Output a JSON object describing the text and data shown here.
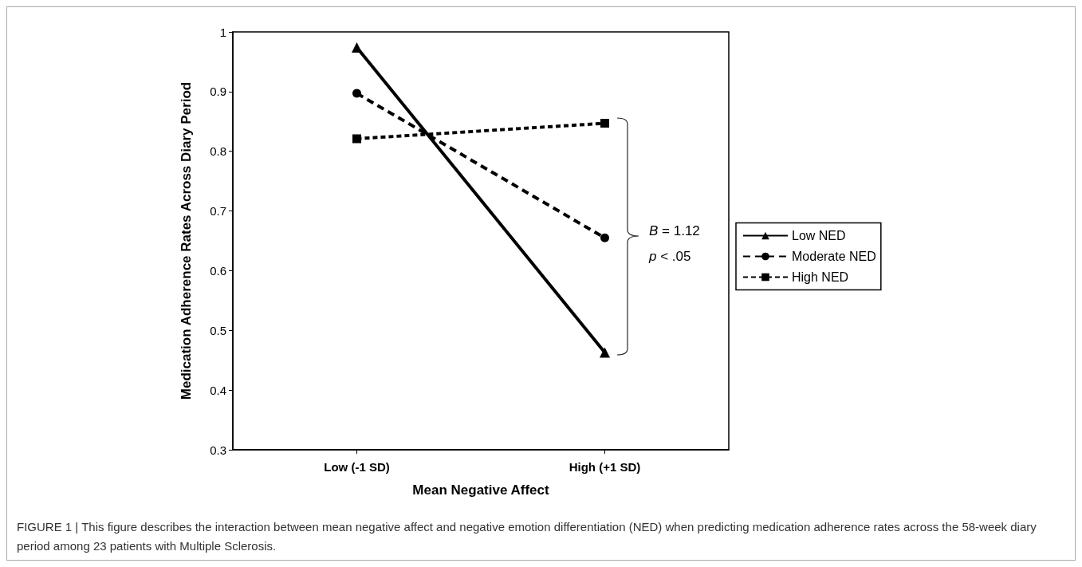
{
  "chart_data": {
    "type": "line",
    "xlabel": "Mean Negative Affect",
    "ylabel": "Medication Adherence Rates Across Diary Period",
    "categories": [
      "Low (-1 SD)",
      "High (+1 SD)"
    ],
    "series": [
      {
        "name": "Low NED",
        "color": "#000000",
        "values": [
          0.974,
          0.463
        ],
        "marker": "triangle",
        "line_style": "solid"
      },
      {
        "name": "Moderate NED",
        "color": "#000000",
        "values": [
          0.897,
          0.655
        ],
        "marker": "circle",
        "line_style": "dashed"
      },
      {
        "name": "High NED",
        "color": "#000000",
        "values": [
          0.821,
          0.847
        ],
        "marker": "square",
        "line_style": "dotted"
      }
    ],
    "ylim": [
      0.3,
      1
    ],
    "yticks": [
      0.3,
      0.4,
      0.5,
      0.6,
      0.7,
      0.8,
      0.9,
      1
    ],
    "grid": false,
    "legend": "right",
    "annotations": [
      "B = 1.12",
      "p < .05",
      "FIGURE 1 | This figure describes the interaction between mean negative affect and negative emotion differentiation (NED) when predicting medication adherence rates across the 58-week diary period among 23 patients with Multiple Sclerosis."
    ]
  }
}
